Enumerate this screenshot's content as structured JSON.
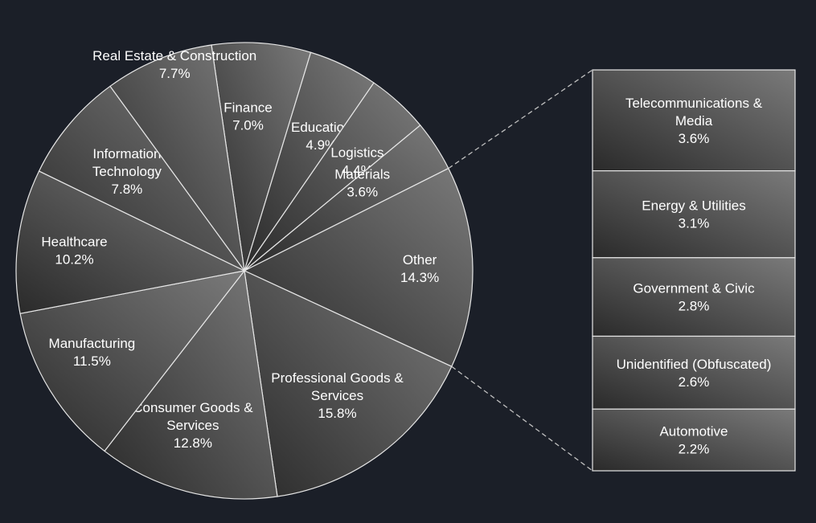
{
  "chart_data": {
    "type": "pie",
    "subtype": "pie-of-pie",
    "title": "",
    "main_slices": [
      {
        "label_lines": [
          "Finance"
        ],
        "value_text": "7.0%",
        "value": 7.0
      },
      {
        "label_lines": [
          "Education"
        ],
        "value_text": "4.9%",
        "value": 4.9
      },
      {
        "label_lines": [
          "Logistics"
        ],
        "value_text": "4.4%",
        "value": 4.4
      },
      {
        "label_lines": [
          "Materials"
        ],
        "value_text": "3.6%",
        "value": 3.6
      },
      {
        "label_lines": [
          "Other"
        ],
        "value_text": "14.3%",
        "value": 14.3
      },
      {
        "label_lines": [
          "Professional Goods &",
          "Services"
        ],
        "value_text": "15.8%",
        "value": 15.8
      },
      {
        "label_lines": [
          "Consumer Goods &",
          "Services"
        ],
        "value_text": "12.8%",
        "value": 12.8
      },
      {
        "label_lines": [
          "Manufacturing"
        ],
        "value_text": "11.5%",
        "value": 11.5
      },
      {
        "label_lines": [
          "Healthcare"
        ],
        "value_text": "10.2%",
        "value": 10.2
      },
      {
        "label_lines": [
          "Information",
          "Technology"
        ],
        "value_text": "7.8%",
        "value": 7.8
      },
      {
        "label_lines": [
          "Real Estate & Construction"
        ],
        "value_text": "7.7%",
        "value": 7.7
      }
    ],
    "other_breakdown": [
      {
        "label_lines": [
          "Telecommunications &",
          "Media"
        ],
        "value_text": "3.6%",
        "value": 3.6
      },
      {
        "label_lines": [
          "Energy & Utilities"
        ],
        "value_text": "3.1%",
        "value": 3.1
      },
      {
        "label_lines": [
          "Government & Civic"
        ],
        "value_text": "2.8%",
        "value": 2.8
      },
      {
        "label_lines": [
          "Unidentified (Obfuscated)"
        ],
        "value_text": "2.6%",
        "value": 2.6
      },
      {
        "label_lines": [
          "Automotive"
        ],
        "value_text": "2.2%",
        "value": 2.2
      }
    ],
    "colors": {
      "background": "#1b1f28",
      "slice_light": "#7a7a7a",
      "slice_dark": "#2a2a2a",
      "stroke": "#e6e6e6",
      "text": "#ffffff"
    }
  }
}
